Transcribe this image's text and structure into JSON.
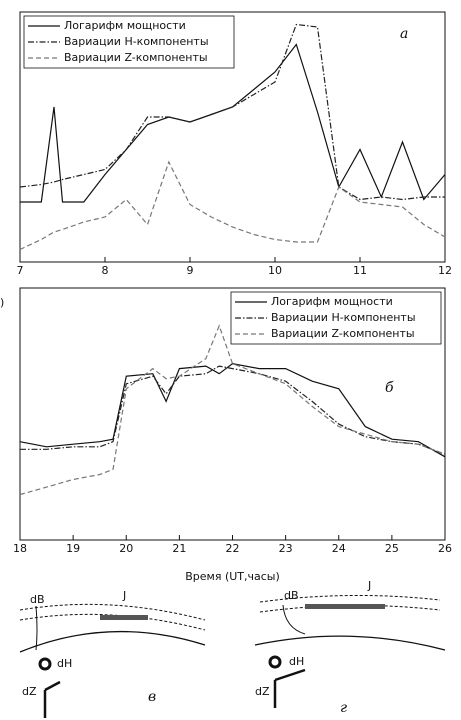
{
  "chart_data": [
    {
      "type": "line",
      "annotation": "а",
      "legend": "top-left",
      "x": [
        7,
        7.25,
        7.4,
        7.5,
        7.75,
        8,
        8.25,
        8.5,
        8.75,
        9,
        9.25,
        9.5,
        9.75,
        10,
        10.25,
        10.5,
        10.75,
        11,
        11.25,
        11.5,
        11.75,
        12
      ],
      "xlim": [
        7,
        12
      ],
      "xticks": [
        7,
        8,
        9,
        10,
        11,
        12
      ],
      "ylim": [
        0,
        10
      ],
      "series": [
        {
          "name": "Логарифм мощности",
          "color": "#111111",
          "style": "solid",
          "values": [
            2.4,
            2.4,
            6.2,
            2.4,
            2.4,
            3.5,
            4.5,
            5.5,
            5.8,
            5.6,
            5.9,
            6.2,
            6.9,
            7.6,
            8.7,
            6,
            3,
            4.5,
            2.6,
            4.8,
            2.5,
            3.5
          ]
        },
        {
          "name": "Вариации Н-компоненты",
          "color": "#222222",
          "style": "dashdot",
          "values": [
            3,
            3.1,
            3.2,
            3.3,
            3.5,
            3.7,
            4.5,
            5.8,
            5.8,
            5.6,
            5.9,
            6.2,
            6.7,
            7.2,
            9.5,
            9.4,
            3,
            2.5,
            2.6,
            2.5,
            2.6,
            2.6
          ]
        },
        {
          "name": "Вариации Z-компоненты",
          "color": "#777777",
          "style": "dashed",
          "values": [
            0.5,
            0.9,
            1.2,
            1.3,
            1.6,
            1.8,
            2.5,
            1.5,
            4,
            2.3,
            1.8,
            1.4,
            1.1,
            0.9,
            0.8,
            0.8,
            3,
            2.4,
            2.3,
            2.2,
            1.5,
            1
          ]
        }
      ]
    },
    {
      "type": "line",
      "annotation": "б",
      "legend": "top-right",
      "left_fragment": ")",
      "xlabel": "Время (UT,часы)",
      "x": [
        18,
        18.5,
        19,
        19.5,
        19.75,
        20,
        20.5,
        20.75,
        21,
        21.5,
        21.75,
        22,
        22.5,
        23,
        23.5,
        24,
        24.5,
        25,
        25.5,
        26
      ],
      "xlim": [
        18,
        26
      ],
      "xticks": [
        18,
        19,
        20,
        21,
        22,
        23,
        24,
        25,
        26
      ],
      "ylim": [
        0,
        10
      ],
      "series": [
        {
          "name": "Логарифм мощности",
          "color": "#111111",
          "style": "solid",
          "values": [
            3.9,
            3.7,
            3.8,
            3.9,
            4,
            6.5,
            6.6,
            5.5,
            6.8,
            6.9,
            6.6,
            7,
            6.8,
            6.8,
            6.3,
            6,
            4.5,
            4,
            3.9,
            3.3
          ]
        },
        {
          "name": "Вариации Н-компоненты",
          "color": "#222222",
          "style": "dashdot",
          "values": [
            3.6,
            3.6,
            3.7,
            3.7,
            3.9,
            6.2,
            6.5,
            5.8,
            6.5,
            6.6,
            6.9,
            6.8,
            6.6,
            6.3,
            5.5,
            4.6,
            4.1,
            3.9,
            3.8,
            3.4
          ]
        },
        {
          "name": "Вариации Z-компоненты",
          "color": "#777777",
          "style": "dashed",
          "values": [
            1.8,
            2.1,
            2.4,
            2.6,
            2.8,
            6,
            6.8,
            6.4,
            6.5,
            7.2,
            8.5,
            7,
            6.6,
            6.2,
            5.3,
            4.5,
            4.2,
            3.9,
            3.8,
            3.4
          ]
        }
      ]
    }
  ],
  "diagrams": [
    {
      "dB": "dB",
      "J": "J",
      "dH": "dH",
      "dZ": "dZ",
      "label": "в"
    },
    {
      "dB": "dB",
      "J": "J",
      "dH": "dH",
      "dZ": "dZ",
      "label": "г"
    }
  ]
}
